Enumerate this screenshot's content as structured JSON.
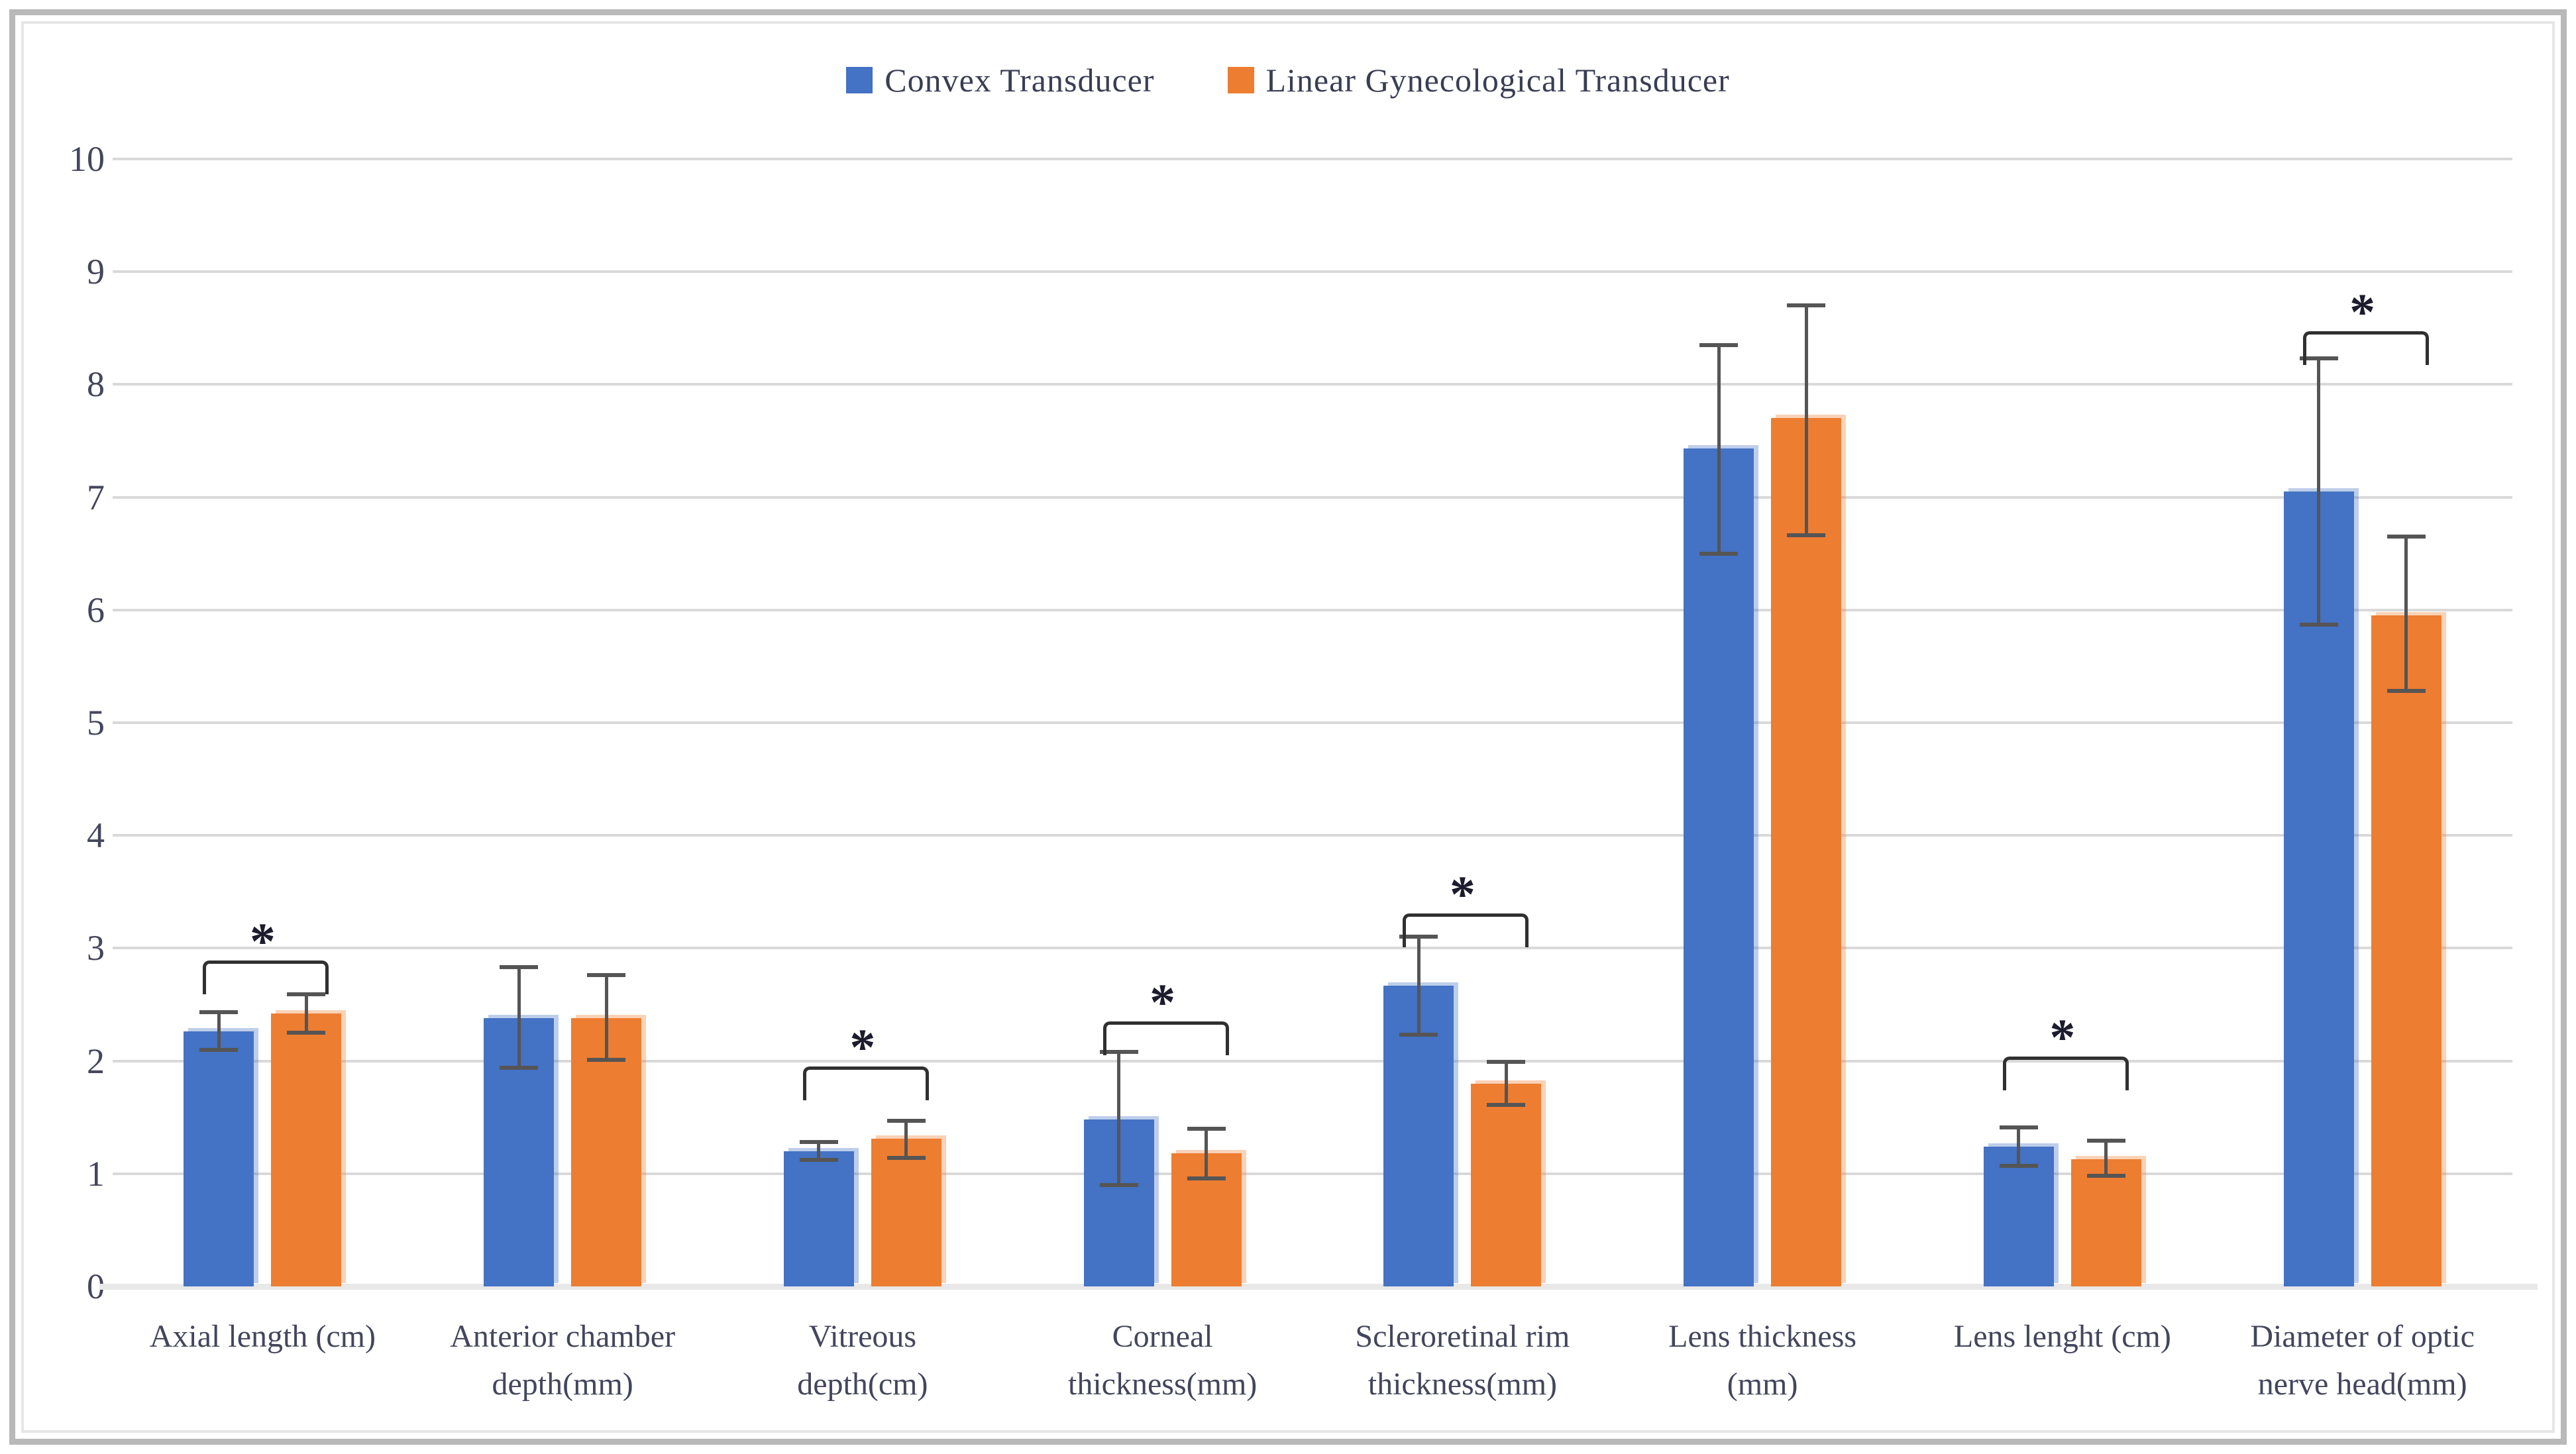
{
  "legend": [
    {
      "label": "Convex Transducer",
      "color": "#4472C4"
    },
    {
      "label": "Linear Gynecological Transducer",
      "color": "#ED7D31"
    }
  ],
  "colors": {
    "convex": "#4472C4",
    "linear": "#ED7D31",
    "gridline": "#D9D9D9",
    "baseline": "#E8E8E8",
    "error_bar": "#555555",
    "bracket": "#303030",
    "text": "#43465C"
  },
  "y_axis": {
    "tick_labels": [
      "0",
      "1",
      "2",
      "3",
      "4",
      "5",
      "6",
      "7",
      "8",
      "9",
      "10"
    ]
  },
  "chart_data": {
    "type": "bar",
    "title": "",
    "xlabel": "",
    "ylabel": "",
    "ylim": [
      0,
      10
    ],
    "ytick_step": 1,
    "grid": true,
    "legend_position": "top",
    "categories": [
      "Axial length (cm)",
      "Anterior chamber\ndepth(mm)",
      "Vitreous\ndepth(cm)",
      "Corneal\nthickness(mm)",
      "Scleroretinal rim\nthickness(mm)",
      "Lens thickness\n(mm)",
      "Lens lenght (cm)",
      "Diameter of optic\nnerve head(mm)"
    ],
    "series": [
      {
        "name": "Convex Transducer",
        "color": "#4472C4",
        "values": [
          2.26,
          2.38,
          1.2,
          1.48,
          2.67,
          7.43,
          1.24,
          7.05
        ],
        "error_low": [
          2.1,
          1.94,
          1.12,
          0.9,
          2.23,
          6.5,
          1.07,
          5.87
        ],
        "error_high": [
          2.43,
          2.83,
          1.28,
          2.08,
          3.1,
          8.35,
          1.41,
          8.23
        ]
      },
      {
        "name": "Linear Gynecological Transducer",
        "color": "#ED7D31",
        "values": [
          2.42,
          2.38,
          1.31,
          1.18,
          1.8,
          7.7,
          1.13,
          5.95
        ],
        "error_low": [
          2.25,
          2.01,
          1.14,
          0.96,
          1.61,
          6.66,
          0.98,
          5.28
        ],
        "error_high": [
          2.59,
          2.76,
          1.47,
          1.4,
          1.99,
          8.7,
          1.29,
          6.65
        ]
      }
    ],
    "significance_markers": [
      {
        "category_index": 0,
        "bracket_y": 2.89,
        "label": "*"
      },
      {
        "category_index": 2,
        "bracket_y": 1.95,
        "label": "*"
      },
      {
        "category_index": 3,
        "bracket_y": 2.35,
        "label": "*"
      },
      {
        "category_index": 4,
        "bracket_y": 3.31,
        "label": "*"
      },
      {
        "category_index": 6,
        "bracket_y": 2.04,
        "label": "*"
      },
      {
        "category_index": 7,
        "bracket_y": 8.47,
        "label": "*"
      }
    ]
  }
}
